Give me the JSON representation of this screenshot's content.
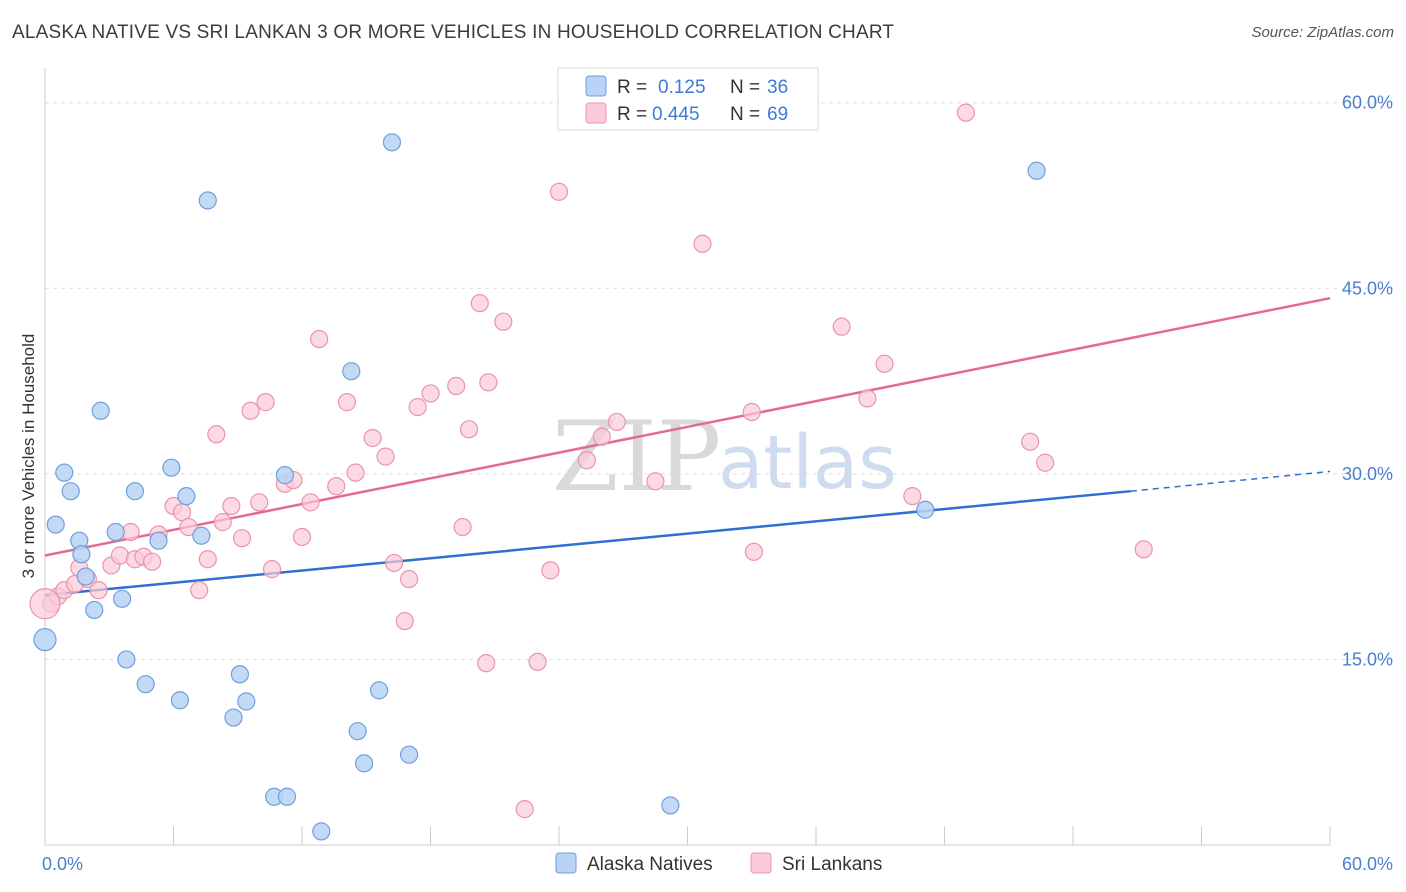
{
  "title": "ALASKA NATIVE VS SRI LANKAN 3 OR MORE VEHICLES IN HOUSEHOLD CORRELATION CHART",
  "source": "Source: ZipAtlas.com",
  "watermark": {
    "zip": "ZIP",
    "atlas": "atlas"
  },
  "legend": {
    "rows": [
      {
        "r_label": "R =",
        "r_value": "0.125",
        "n_label": "N =",
        "n_value": "36"
      },
      {
        "r_label": "R =",
        "r_value": "0.445",
        "n_label": "N =",
        "n_value": "69"
      }
    ]
  },
  "bottom_legend": [
    "Alaska Natives",
    "Sri Lankans"
  ],
  "chart_data": {
    "type": "scatter",
    "title": "ALASKA NATIVE VS SRI LANKAN 3 OR MORE VEHICLES IN HOUSEHOLD CORRELATION CHART",
    "xlabel": "",
    "ylabel": "3 or more Vehicles in Household",
    "xlim": [
      0,
      60
    ],
    "ylim": [
      0,
      60
    ],
    "x_ticks": [
      "0.0%",
      "60.0%"
    ],
    "y_ticks": [
      "15.0%",
      "30.0%",
      "45.0%",
      "60.0%"
    ],
    "y_tick_values": [
      15,
      30,
      45,
      60
    ],
    "grid": true,
    "legend_position": "top-center",
    "colors": {
      "alaska_fill": "#b8d3f5",
      "alaska_stroke": "#6f9fdc",
      "alaska_line": "#2f6fce",
      "srilankan_fill": "#fbcbd9",
      "srilankan_stroke": "#eb93ad",
      "srilankan_line": "#e36b93",
      "tick_text": "#4a7ed0",
      "grid": "#dddddd"
    },
    "series": [
      {
        "name": "Alaska Natives",
        "regression": {
          "x": [
            0,
            50.7
          ],
          "y": [
            20.2,
            28.6
          ],
          "dashed_to": [
            60,
            30.2
          ]
        },
        "points": [
          [
            0.0,
            16.6
          ],
          [
            0.5,
            25.9
          ],
          [
            0.9,
            30.1
          ],
          [
            1.2,
            28.6
          ],
          [
            1.6,
            24.6
          ],
          [
            1.7,
            23.5
          ],
          [
            1.9,
            21.7
          ],
          [
            2.3,
            19.0
          ],
          [
            2.6,
            35.1
          ],
          [
            3.3,
            25.3
          ],
          [
            3.6,
            19.9
          ],
          [
            3.8,
            15.0
          ],
          [
            4.2,
            28.6
          ],
          [
            4.7,
            13.0
          ],
          [
            5.3,
            24.6
          ],
          [
            5.9,
            30.5
          ],
          [
            6.3,
            11.7
          ],
          [
            6.6,
            28.2
          ],
          [
            7.3,
            25.0
          ],
          [
            7.6,
            52.1
          ],
          [
            8.8,
            10.3
          ],
          [
            9.1,
            13.8
          ],
          [
            9.4,
            11.6
          ],
          [
            10.7,
            3.9
          ],
          [
            11.2,
            29.9
          ],
          [
            11.3,
            3.9
          ],
          [
            12.9,
            1.1
          ],
          [
            14.3,
            38.3
          ],
          [
            14.6,
            9.2
          ],
          [
            14.9,
            6.6
          ],
          [
            15.6,
            12.5
          ],
          [
            16.2,
            56.8
          ],
          [
            17.0,
            7.3
          ],
          [
            29.2,
            3.2
          ],
          [
            41.1,
            27.1
          ],
          [
            46.3,
            54.5
          ]
        ]
      },
      {
        "name": "Sri Lankans",
        "regression": {
          "x": [
            0,
            60
          ],
          "y": [
            23.4,
            44.2
          ]
        },
        "points": [
          [
            0.3,
            19.5
          ],
          [
            0.6,
            20.1
          ],
          [
            0.9,
            20.6
          ],
          [
            1.4,
            21.1
          ],
          [
            1.6,
            22.4
          ],
          [
            2.0,
            21.5
          ],
          [
            2.5,
            20.6
          ],
          [
            3.1,
            22.6
          ],
          [
            3.5,
            23.4
          ],
          [
            4.0,
            25.3
          ],
          [
            4.2,
            23.1
          ],
          [
            4.6,
            23.3
          ],
          [
            5.0,
            22.9
          ],
          [
            5.3,
            25.1
          ],
          [
            6.0,
            27.4
          ],
          [
            6.4,
            26.9
          ],
          [
            6.7,
            25.7
          ],
          [
            7.2,
            20.6
          ],
          [
            7.6,
            23.1
          ],
          [
            8.0,
            33.2
          ],
          [
            8.3,
            26.1
          ],
          [
            8.7,
            27.4
          ],
          [
            9.2,
            24.8
          ],
          [
            9.6,
            35.1
          ],
          [
            10.0,
            27.7
          ],
          [
            10.3,
            35.8
          ],
          [
            10.6,
            22.3
          ],
          [
            11.2,
            29.2
          ],
          [
            11.6,
            29.5
          ],
          [
            12.0,
            24.9
          ],
          [
            12.4,
            27.7
          ],
          [
            12.8,
            40.9
          ],
          [
            13.6,
            29.0
          ],
          [
            14.1,
            35.8
          ],
          [
            14.5,
            30.1
          ],
          [
            15.3,
            32.9
          ],
          [
            15.9,
            31.4
          ],
          [
            16.3,
            22.8
          ],
          [
            16.8,
            18.1
          ],
          [
            17.0,
            21.5
          ],
          [
            17.4,
            35.4
          ],
          [
            18.0,
            36.5
          ],
          [
            19.2,
            37.1
          ],
          [
            19.5,
            25.7
          ],
          [
            19.8,
            33.6
          ],
          [
            20.3,
            43.8
          ],
          [
            20.6,
            14.7
          ],
          [
            20.7,
            37.4
          ],
          [
            21.4,
            42.3
          ],
          [
            22.4,
            2.9
          ],
          [
            23.0,
            14.8
          ],
          [
            23.6,
            22.2
          ],
          [
            24.0,
            52.8
          ],
          [
            25.3,
            31.1
          ],
          [
            26.0,
            33.0
          ],
          [
            26.7,
            34.2
          ],
          [
            28.5,
            29.4
          ],
          [
            30.7,
            48.6
          ],
          [
            33.0,
            35.0
          ],
          [
            33.1,
            23.7
          ],
          [
            37.2,
            41.9
          ],
          [
            38.4,
            36.1
          ],
          [
            39.2,
            38.9
          ],
          [
            40.5,
            28.2
          ],
          [
            43.0,
            59.2
          ],
          [
            46.0,
            32.6
          ],
          [
            46.7,
            30.9
          ],
          [
            51.3,
            23.9
          ],
          [
            0.0,
            19.5
          ]
        ]
      }
    ]
  }
}
